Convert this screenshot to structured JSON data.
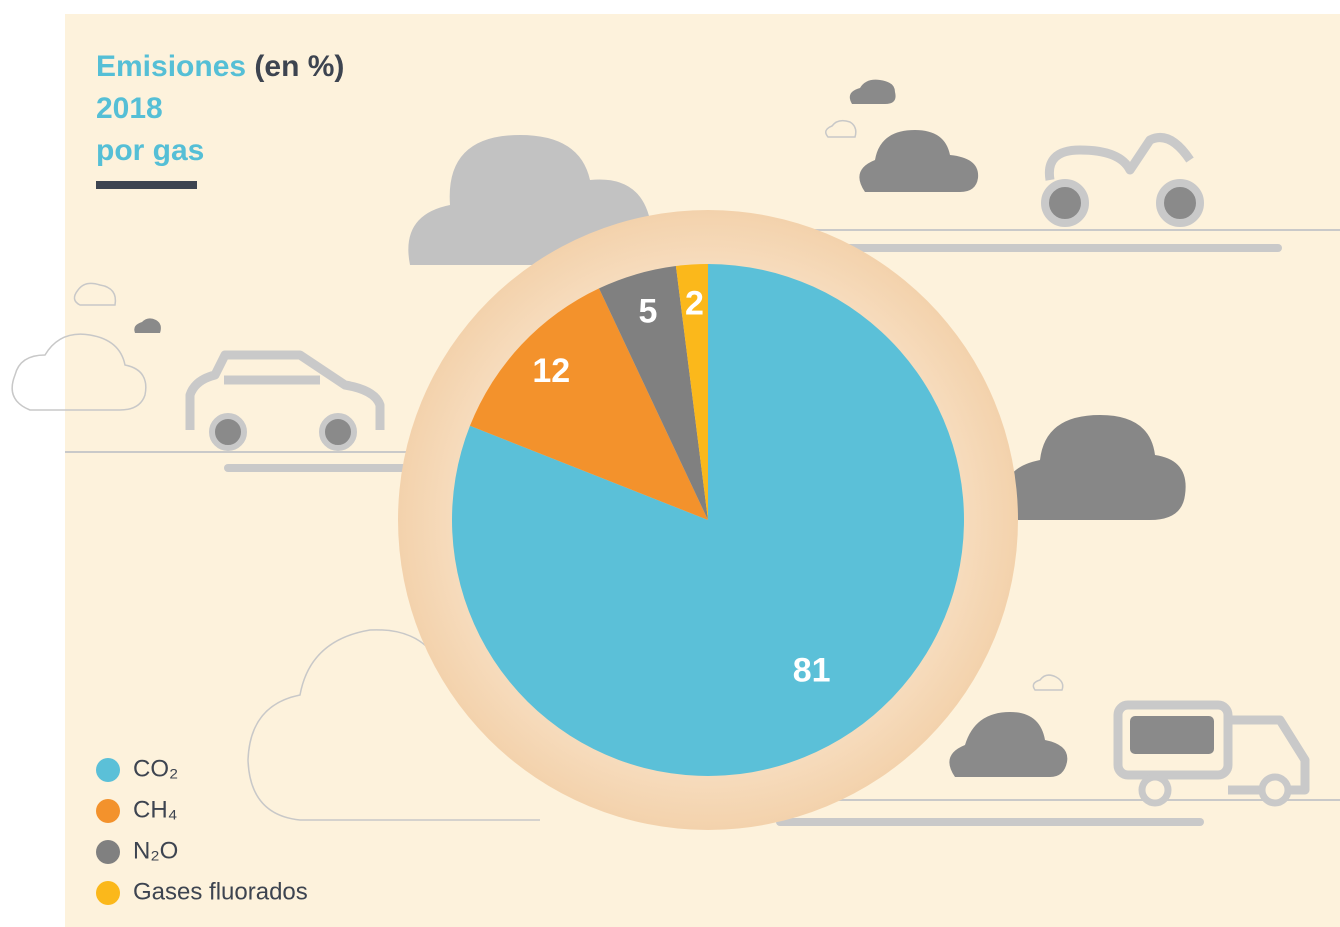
{
  "chart_data": {
    "type": "pie",
    "title": "Emisiones",
    "unit": "(en %)",
    "subtitle": [
      "2018",
      "por gas"
    ],
    "categories": [
      "CO₂",
      "CH₄",
      "N₂O",
      "Gases fluorados"
    ],
    "values": [
      81,
      12,
      5,
      2
    ],
    "colors": [
      "#5bc0d8",
      "#f3922c",
      "#808080",
      "#fbb81b"
    ],
    "legend": "bottom-left"
  }
}
